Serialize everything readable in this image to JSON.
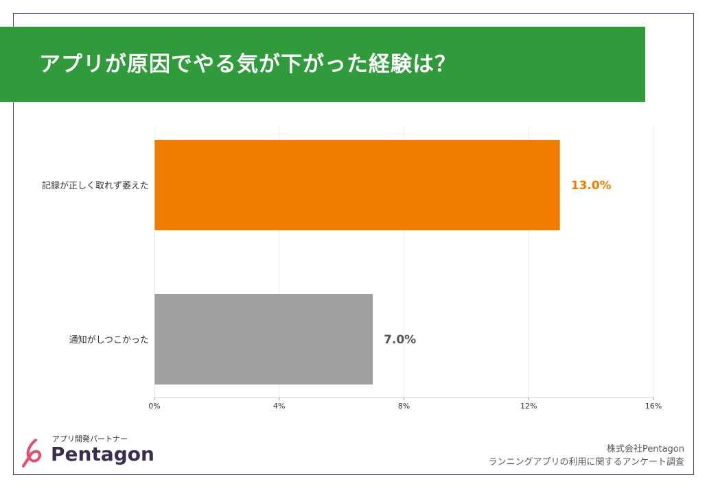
{
  "banner": {
    "title": "アプリが原因でやる気が下がった経験は？"
  },
  "chart_data": {
    "type": "bar",
    "orientation": "horizontal",
    "categories": [
      "記録が正しく取れず萎えた",
      "通知がしつこかった"
    ],
    "values": [
      13.0,
      7.0
    ],
    "value_labels": [
      "13.0%",
      "7.0%"
    ],
    "colors": [
      "#f07d00",
      "#a0a0a0"
    ],
    "xlim": [
      0,
      16
    ],
    "xticks": [
      0,
      4,
      8,
      12,
      16
    ],
    "xtick_labels": [
      "0%",
      "4%",
      "8%",
      "12%",
      "16%"
    ],
    "grid": true
  },
  "footer": {
    "logo_tagline": "アプリ開発パートナー",
    "logo_wordmark": "Pentagon",
    "company": "株式会社Pentagon",
    "source": "ランニングアプリの利用に関するアンケート調査"
  }
}
